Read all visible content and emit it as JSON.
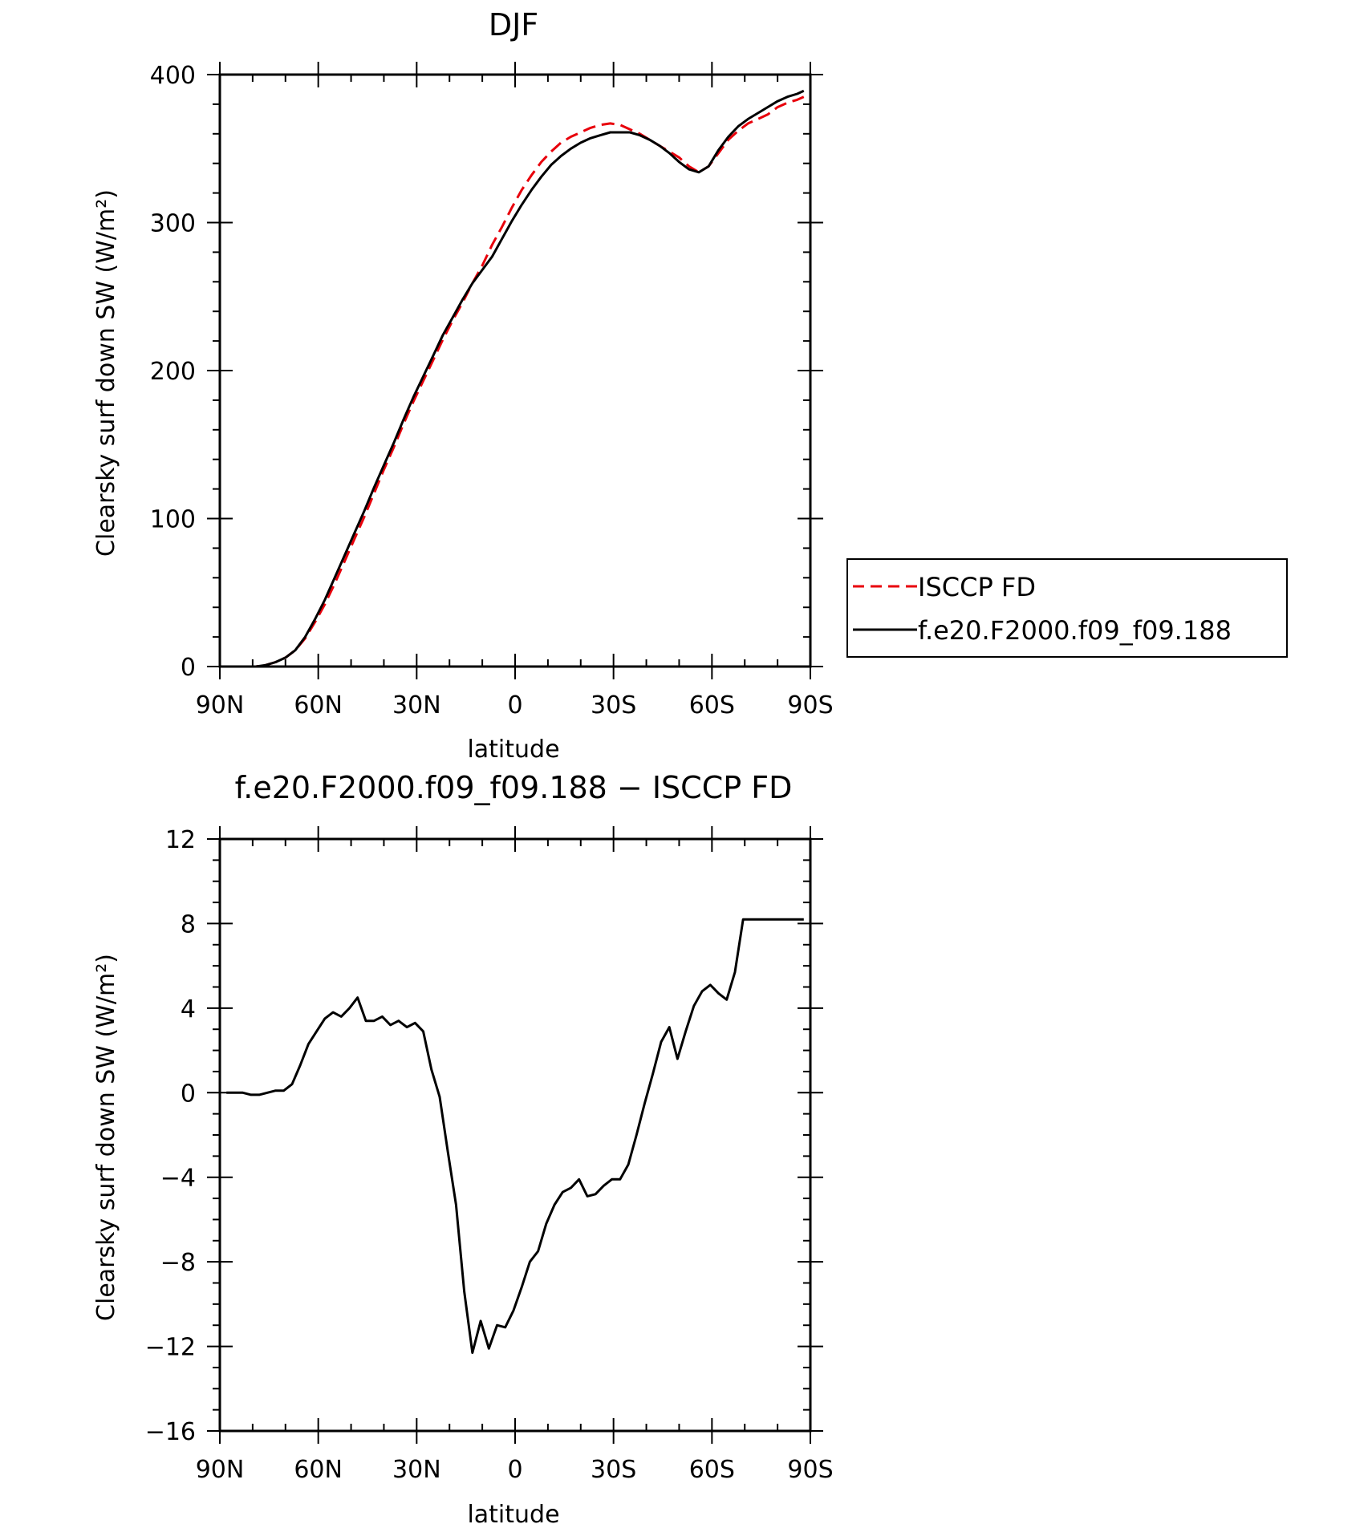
{
  "chart_data": [
    {
      "type": "line",
      "title": "DJF",
      "xlabel": "latitude",
      "ylabel": "Clearsky surf down SW (W/m²)",
      "xlim": [
        -90,
        90
      ],
      "ylim": [
        0,
        400
      ],
      "x_direction": "north-to-south",
      "x_ticks": [
        -90,
        -60,
        -30,
        0,
        30,
        60,
        90
      ],
      "x_tick_labels": [
        "90N",
        "60N",
        "30N",
        "0",
        "30S",
        "60S",
        "90S"
      ],
      "y_ticks": [
        0,
        100,
        200,
        300,
        400
      ],
      "y_tick_labels": [
        "0",
        "100",
        "200",
        "300",
        "400"
      ],
      "grid": false,
      "legend_position": "right",
      "series": [
        {
          "name": "ISCCP FD",
          "color": "#e8000b",
          "dash": "dashed",
          "x": [
            -88,
            -85,
            -82,
            -79,
            -76,
            -73,
            -70,
            -67,
            -64,
            -61,
            -58,
            -55,
            -52,
            -49,
            -46,
            -43,
            -40,
            -37,
            -34,
            -31,
            -28,
            -25,
            -22,
            -19,
            -16,
            -13,
            -10,
            -7,
            -4,
            -1,
            2,
            5,
            8,
            11,
            14,
            17,
            20,
            23,
            26,
            29,
            32,
            35,
            38,
            41,
            44,
            47,
            50,
            53,
            56,
            59,
            62,
            65,
            68,
            71,
            74,
            77,
            80,
            83,
            86,
            88
          ],
          "y": [
            0,
            0,
            0,
            0,
            1,
            3,
            6,
            11,
            19,
            30,
            42,
            56,
            71,
            86,
            101,
            117,
            133,
            148,
            164,
            179,
            193,
            207,
            221,
            234,
            246,
            259,
            271,
            285,
            297,
            310,
            322,
            332,
            341,
            348,
            354,
            358,
            361,
            364,
            366,
            367,
            366,
            363,
            360,
            356,
            352,
            348,
            344,
            338,
            334,
            338,
            347,
            356,
            362,
            367,
            370,
            373,
            378,
            381,
            383,
            385
          ]
        },
        {
          "name": "f.e20.F2000.f09_f09.188",
          "color": "#000000",
          "dash": "solid",
          "x": [
            -88,
            -85,
            -82,
            -79,
            -76,
            -73,
            -70,
            -67,
            -64,
            -61,
            -58,
            -55,
            -52,
            -49,
            -46,
            -43,
            -40,
            -37,
            -34,
            -31,
            -28,
            -25,
            -22,
            -19,
            -16,
            -13,
            -10,
            -7,
            -4,
            -1,
            2,
            5,
            8,
            11,
            14,
            17,
            20,
            23,
            26,
            29,
            32,
            35,
            38,
            41,
            44,
            47,
            50,
            53,
            56,
            59,
            62,
            65,
            68,
            71,
            74,
            77,
            80,
            83,
            86,
            88
          ],
          "y": [
            0,
            0,
            0,
            0,
            1,
            3,
            6,
            11,
            20,
            32,
            45,
            60,
            75,
            90,
            105,
            121,
            136,
            151,
            167,
            182,
            196,
            210,
            224,
            236,
            248,
            259,
            268,
            277,
            289,
            301,
            312,
            322,
            331,
            339,
            345,
            350,
            354,
            357,
            359,
            361,
            361,
            361,
            359,
            356,
            352,
            347,
            341,
            336,
            334,
            338,
            349,
            358,
            365,
            370,
            374,
            378,
            382,
            385,
            387,
            389
          ]
        }
      ]
    },
    {
      "type": "line",
      "title": "f.e20.F2000.f09_f09.188 − ISCCP FD",
      "xlabel": "latitude",
      "ylabel": "Clearsky surf down SW (W/m²)",
      "xlim": [
        -90,
        90
      ],
      "ylim": [
        -16,
        12
      ],
      "x_direction": "north-to-south",
      "x_ticks": [
        -90,
        -60,
        -30,
        0,
        30,
        60,
        90
      ],
      "x_tick_labels": [
        "90N",
        "60N",
        "30N",
        "0",
        "30S",
        "60S",
        "90S"
      ],
      "y_ticks": [
        -16,
        -12,
        -8,
        -4,
        0,
        4,
        8,
        12
      ],
      "y_tick_labels": [
        "−16",
        "−12",
        "−8",
        "−4",
        "0",
        "4",
        "8",
        "12"
      ],
      "grid": false,
      "series": [
        {
          "color": "#000000",
          "dash": "solid",
          "x": [
            -88,
            -85.5,
            -83,
            -80.5,
            -78,
            -75.5,
            -73,
            -70.5,
            -68,
            -65.5,
            -63,
            -60.5,
            -58,
            -55.5,
            -53,
            -50.5,
            -48,
            -45.5,
            -43,
            -40.5,
            -38,
            -35.5,
            -33,
            -30.5,
            -28,
            -25.5,
            -23,
            -20.5,
            -18,
            -15.5,
            -13,
            -10.5,
            -8,
            -5.5,
            -3,
            -0.5,
            2,
            4.5,
            7,
            9.5,
            12,
            14.5,
            17,
            19.5,
            22,
            24.5,
            27,
            29.5,
            32,
            34.5,
            37,
            39.5,
            42,
            44.5,
            47,
            49.5,
            52,
            54.5,
            57,
            59.5,
            62,
            64.5,
            67,
            69.5,
            72,
            74.5,
            77,
            79.5,
            82,
            84.5,
            87,
            88
          ],
          "y": [
            0,
            0,
            0,
            -0.1,
            -0.1,
            0,
            0.1,
            0.1,
            0.4,
            1.3,
            2.3,
            2.9,
            3.5,
            3.8,
            3.6,
            4.0,
            4.5,
            3.4,
            3.4,
            3.6,
            3.2,
            3.4,
            3.1,
            3.3,
            2.9,
            1.1,
            -0.2,
            -2.8,
            -5.3,
            -9.4,
            -12.3,
            -10.8,
            -12.1,
            -11.0,
            -11.1,
            -10.3,
            -9.2,
            -8.0,
            -7.5,
            -6.2,
            -5.3,
            -4.7,
            -4.5,
            -4.1,
            -4.9,
            -4.8,
            -4.4,
            -4.1,
            -4.1,
            -3.4,
            -2.0,
            -0.5,
            0.9,
            2.4,
            3.1,
            1.6,
            2.9,
            4.1,
            4.8,
            5.1,
            4.7,
            4.4,
            5.7,
            8.2,
            8.2,
            8.2,
            8.2,
            8.2,
            8.2,
            8.2,
            8.2,
            8.2
          ]
        }
      ]
    }
  ]
}
